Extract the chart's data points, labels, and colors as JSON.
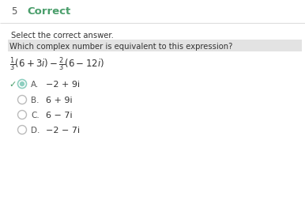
{
  "bg_color": "#ffffff",
  "header_bg": "#ffffff",
  "header_num": "5",
  "header_label": "Correct",
  "header_color": "#4a9e6b",
  "header_num_color": "#555555",
  "prompt": "Select the correct answer.",
  "question_bg": "#c8c8c8",
  "question_text": "Which complex number is equivalent to this expression?",
  "options": [
    {
      "label": "A.",
      "text": "−2 + 9i",
      "correct": true
    },
    {
      "label": "B.",
      "text": "6 + 9i",
      "correct": false
    },
    {
      "label": "C.",
      "text": "6 − 7i",
      "correct": false
    },
    {
      "label": "D.",
      "text": "−2 − 7i",
      "correct": false
    }
  ],
  "correct_color": "#4a9e6b",
  "radio_color": "#bbbbbb",
  "radio_selected_color": "#8ecfc0",
  "text_color": "#333333",
  "divider_color": "#dddddd",
  "label_color": "#555555"
}
